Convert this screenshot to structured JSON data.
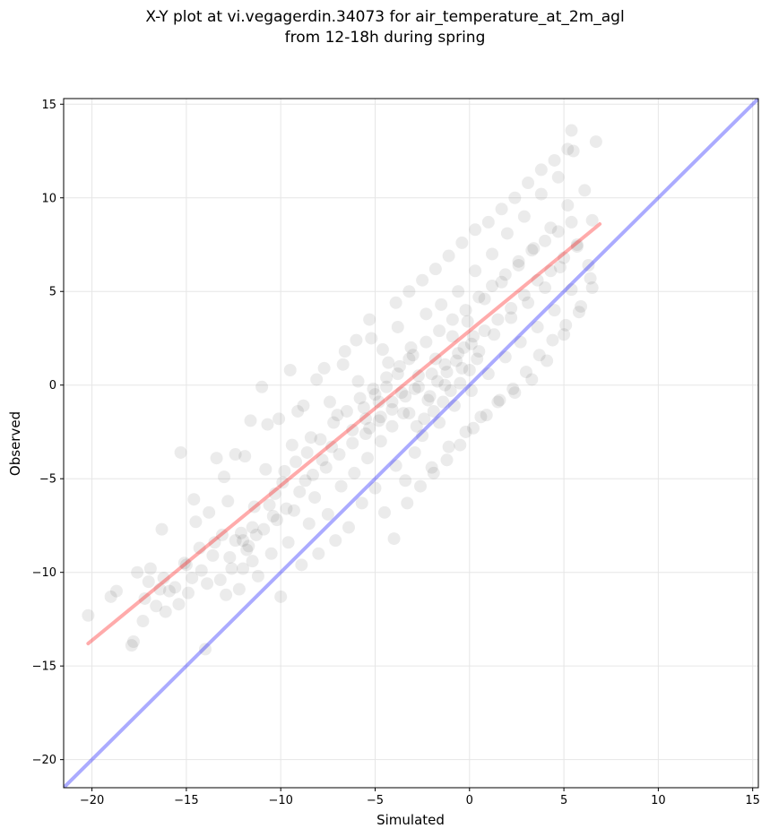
{
  "chart_data": {
    "type": "scatter",
    "title": "X-Y plot at vi.vegagerdin.34073 for air_temperature_at_2m_agl",
    "subtitle": "from 12-18h during spring",
    "xlabel": "Simulated",
    "ylabel": "Observed",
    "xlim": [
      -21.5,
      15.3
    ],
    "ylim": [
      -21.5,
      15.3
    ],
    "xticks": [
      -20,
      -15,
      -10,
      -5,
      0,
      5,
      10,
      15
    ],
    "yticks": [
      -20,
      -15,
      -10,
      -5,
      0,
      5,
      10,
      15
    ],
    "xtick_labels": [
      "−20",
      "−15",
      "−10",
      "−5",
      "0",
      "5",
      "10",
      "15"
    ],
    "ytick_labels": [
      "−20",
      "−15",
      "−10",
      "−5",
      "0",
      "5",
      "10",
      "15"
    ],
    "grid": true,
    "point_color": "#000000",
    "point_alpha": 0.08,
    "identity_line": {
      "x": [
        -21.5,
        15.3
      ],
      "y": [
        -21.5,
        15.3
      ],
      "color": "#0000ff"
    },
    "regression_line": {
      "x": [
        -20.2,
        6.9
      ],
      "y": [
        -13.8,
        8.6
      ],
      "color": "#ff0000"
    },
    "points": [
      [
        -20.2,
        -12.3
      ],
      [
        -19.0,
        -11.3
      ],
      [
        -18.7,
        -11.0
      ],
      [
        -17.9,
        -13.9
      ],
      [
        -17.8,
        -13.7
      ],
      [
        -17.6,
        -10.0
      ],
      [
        -17.3,
        -12.6
      ],
      [
        -17.2,
        -11.4
      ],
      [
        -17.0,
        -10.5
      ],
      [
        -16.9,
        -9.8
      ],
      [
        -16.6,
        -11.8
      ],
      [
        -16.4,
        -10.9
      ],
      [
        -16.3,
        -7.7
      ],
      [
        -16.1,
        -12.1
      ],
      [
        -15.9,
        -11.0
      ],
      [
        -15.6,
        -10.8
      ],
      [
        -15.4,
        -11.7
      ],
      [
        -15.1,
        -9.5
      ],
      [
        -14.9,
        -11.1
      ],
      [
        -14.7,
        -10.3
      ],
      [
        -14.5,
        -7.3
      ],
      [
        -14.2,
        -9.9
      ],
      [
        -14.0,
        -14.1
      ],
      [
        -13.9,
        -10.6
      ],
      [
        -13.8,
        -6.8
      ],
      [
        -13.6,
        -9.1
      ],
      [
        -13.4,
        -3.9
      ],
      [
        -13.2,
        -10.4
      ],
      [
        -13.1,
        -8.0
      ],
      [
        -12.9,
        -11.2
      ],
      [
        -12.8,
        -6.2
      ],
      [
        -12.6,
        -9.8
      ],
      [
        -12.4,
        -8.3
      ],
      [
        -12.2,
        -10.9
      ],
      [
        -12.1,
        -7.9
      ],
      [
        -11.9,
        -3.8
      ],
      [
        -11.7,
        -8.6
      ],
      [
        -11.5,
        -9.4
      ],
      [
        -11.4,
        -6.5
      ],
      [
        -11.2,
        -10.2
      ],
      [
        -11.0,
        -0.1
      ],
      [
        -10.9,
        -7.7
      ],
      [
        -10.7,
        -2.1
      ],
      [
        -10.5,
        -9.0
      ],
      [
        -10.3,
        -5.8
      ],
      [
        -10.2,
        -7.2
      ],
      [
        -10.0,
        -11.3
      ],
      [
        -9.8,
        -4.6
      ],
      [
        -9.6,
        -8.4
      ],
      [
        -9.4,
        -3.2
      ],
      [
        -9.3,
        -6.7
      ],
      [
        -9.1,
        -1.4
      ],
      [
        -8.9,
        -9.6
      ],
      [
        -8.7,
        -5.1
      ],
      [
        -8.5,
        -7.4
      ],
      [
        -8.4,
        -2.8
      ],
      [
        -8.2,
        -6.0
      ],
      [
        -8.0,
        -9.0
      ],
      [
        -7.8,
        -4.0
      ],
      [
        -7.7,
        0.9
      ],
      [
        -7.5,
        -6.9
      ],
      [
        -7.3,
        -3.3
      ],
      [
        -7.1,
        -8.3
      ],
      [
        -7.0,
        -1.6
      ],
      [
        -6.8,
        -5.4
      ],
      [
        -6.6,
        1.8
      ],
      [
        -6.4,
        -7.6
      ],
      [
        -6.2,
        -2.4
      ],
      [
        -6.1,
        -4.7
      ],
      [
        -5.9,
        0.2
      ],
      [
        -5.7,
        -6.3
      ],
      [
        -5.5,
        -1.8
      ],
      [
        -5.4,
        -3.9
      ],
      [
        -5.2,
        2.5
      ],
      [
        -5.0,
        -5.5
      ],
      [
        -4.8,
        -0.9
      ],
      [
        -4.7,
        -3.0
      ],
      [
        -4.5,
        -6.8
      ],
      [
        -4.3,
        1.2
      ],
      [
        -4.1,
        -2.2
      ],
      [
        -3.9,
        -4.3
      ],
      [
        -3.8,
        3.1
      ],
      [
        -3.6,
        -0.4
      ],
      [
        -3.4,
        -5.1
      ],
      [
        -3.2,
        -1.5
      ],
      [
        -3.1,
        2.0
      ],
      [
        -2.9,
        -3.6
      ],
      [
        -2.7,
        0.5
      ],
      [
        -2.5,
        -2.7
      ],
      [
        -2.3,
        3.8
      ],
      [
        -2.2,
        -0.8
      ],
      [
        -2.0,
        -4.4
      ],
      [
        -1.8,
        1.4
      ],
      [
        -1.6,
        -2.0
      ],
      [
        -1.5,
        4.3
      ],
      [
        -1.3,
        0.0
      ],
      [
        -1.1,
        -3.3
      ],
      [
        -0.9,
        2.6
      ],
      [
        -0.8,
        -1.1
      ],
      [
        -0.6,
        5.0
      ],
      [
        -0.4,
        0.9
      ],
      [
        -0.2,
        -2.5
      ],
      [
        -0.1,
        3.4
      ],
      [
        0.1,
        -0.3
      ],
      [
        0.3,
        6.1
      ],
      [
        0.5,
        1.8
      ],
      [
        0.6,
        -1.7
      ],
      [
        0.8,
        4.6
      ],
      [
        1.0,
        0.6
      ],
      [
        1.2,
        7.0
      ],
      [
        1.3,
        2.7
      ],
      [
        1.5,
        -0.9
      ],
      [
        1.7,
        5.5
      ],
      [
        1.9,
        1.5
      ],
      [
        2.0,
        8.1
      ],
      [
        2.2,
        3.6
      ],
      [
        2.4,
        -0.4
      ],
      [
        2.6,
        6.4
      ],
      [
        2.7,
        2.3
      ],
      [
        2.9,
        9.0
      ],
      [
        3.1,
        4.4
      ],
      [
        3.3,
        0.3
      ],
      [
        3.4,
        7.3
      ],
      [
        3.6,
        3.1
      ],
      [
        3.8,
        10.2
      ],
      [
        4.0,
        5.2
      ],
      [
        4.1,
        1.3
      ],
      [
        4.3,
        8.4
      ],
      [
        4.5,
        4.0
      ],
      [
        4.7,
        11.1
      ],
      [
        4.8,
        6.3
      ],
      [
        5.0,
        2.7
      ],
      [
        5.2,
        9.6
      ],
      [
        5.4,
        5.1
      ],
      [
        5.5,
        12.5
      ],
      [
        5.7,
        7.4
      ],
      [
        5.9,
        4.2
      ],
      [
        6.1,
        10.4
      ],
      [
        6.3,
        6.4
      ],
      [
        6.5,
        8.8
      ],
      [
        6.7,
        13.0
      ],
      [
        -15.3,
        -3.6
      ],
      [
        -14.6,
        -6.1
      ],
      [
        -13.0,
        -4.9
      ],
      [
        -12.4,
        -3.7
      ],
      [
        -11.6,
        -1.9
      ],
      [
        -10.8,
        -4.5
      ],
      [
        -10.1,
        -1.8
      ],
      [
        -9.5,
        0.8
      ],
      [
        -8.8,
        -1.1
      ],
      [
        -8.1,
        0.3
      ],
      [
        -7.4,
        -0.9
      ],
      [
        -6.7,
        1.1
      ],
      [
        -6.0,
        2.4
      ],
      [
        -5.3,
        3.5
      ],
      [
        -4.6,
        1.9
      ],
      [
        -3.9,
        4.4
      ],
      [
        -3.2,
        5.0
      ],
      [
        -2.5,
        5.6
      ],
      [
        -1.8,
        6.2
      ],
      [
        -1.1,
        6.9
      ],
      [
        -0.4,
        7.6
      ],
      [
        0.3,
        8.3
      ],
      [
        1.0,
        8.7
      ],
      [
        1.7,
        9.4
      ],
      [
        2.4,
        10.0
      ],
      [
        3.1,
        10.8
      ],
      [
        3.8,
        11.5
      ],
      [
        4.5,
        12.0
      ],
      [
        5.2,
        12.6
      ],
      [
        5.4,
        13.6
      ],
      [
        -12.0,
        -8.3
      ],
      [
        -11.8,
        -8.8
      ],
      [
        -11.5,
        -7.6
      ],
      [
        -10.6,
        -6.4
      ],
      [
        -9.9,
        -5.2
      ],
      [
        -9.2,
        -4.1
      ],
      [
        -8.6,
        -3.6
      ],
      [
        -7.9,
        -2.9
      ],
      [
        -7.2,
        -2.0
      ],
      [
        -6.5,
        -1.4
      ],
      [
        -5.8,
        -0.7
      ],
      [
        -5.1,
        -0.2
      ],
      [
        -4.4,
        0.4
      ],
      [
        -3.7,
        1.0
      ],
      [
        -3.0,
        1.6
      ],
      [
        -2.3,
        2.3
      ],
      [
        -1.6,
        2.9
      ],
      [
        -0.9,
        3.5
      ],
      [
        -0.2,
        4.0
      ],
      [
        0.5,
        4.7
      ],
      [
        1.2,
        5.3
      ],
      [
        1.9,
        5.9
      ],
      [
        2.6,
        6.6
      ],
      [
        3.3,
        7.2
      ],
      [
        4.0,
        7.7
      ],
      [
        4.7,
        8.2
      ],
      [
        5.4,
        8.7
      ],
      [
        -16.2,
        -10.3
      ],
      [
        -15.0,
        -9.6
      ],
      [
        -14.3,
        -8.7
      ],
      [
        -13.5,
        -8.4
      ],
      [
        -12.7,
        -9.2
      ],
      [
        -12.0,
        -9.8
      ],
      [
        -11.3,
        -8.0
      ],
      [
        -10.4,
        -7.0
      ],
      [
        -9.7,
        -6.6
      ],
      [
        -9.0,
        -5.7
      ],
      [
        -8.3,
        -4.8
      ],
      [
        -7.6,
        -4.4
      ],
      [
        -6.9,
        -3.7
      ],
      [
        -6.2,
        -3.1
      ],
      [
        -5.5,
        -2.6
      ],
      [
        -4.8,
        -1.9
      ],
      [
        -4.1,
        -1.3
      ],
      [
        -3.4,
        -0.6
      ],
      [
        -2.7,
        -0.1
      ],
      [
        -2.0,
        0.6
      ],
      [
        -1.3,
        1.1
      ],
      [
        -0.6,
        1.7
      ],
      [
        0.1,
        2.2
      ],
      [
        0.8,
        2.9
      ],
      [
        1.5,
        3.5
      ],
      [
        2.2,
        4.1
      ],
      [
        2.9,
        4.8
      ],
      [
        3.6,
        5.6
      ],
      [
        4.3,
        6.1
      ],
      [
        5.0,
        6.8
      ],
      [
        5.7,
        7.5
      ],
      [
        6.4,
        5.7
      ],
      [
        -4.0,
        -8.2
      ],
      [
        -3.3,
        -6.3
      ],
      [
        -2.6,
        -5.4
      ],
      [
        -1.9,
        -4.7
      ],
      [
        -1.2,
        -4.0
      ],
      [
        -0.5,
        -3.2
      ],
      [
        0.2,
        -2.3
      ],
      [
        0.9,
        -1.6
      ],
      [
        1.6,
        -0.8
      ],
      [
        2.3,
        -0.2
      ],
      [
        3.0,
        0.7
      ],
      [
        3.7,
        1.6
      ],
      [
        4.4,
        2.4
      ],
      [
        5.1,
        3.2
      ],
      [
        5.8,
        3.9
      ],
      [
        6.5,
        5.2
      ],
      [
        -2.8,
        -2.2
      ],
      [
        -2.4,
        -1.8
      ],
      [
        -2.1,
        -0.6
      ],
      [
        -1.9,
        -1.4
      ],
      [
        -1.7,
        0.2
      ],
      [
        -1.4,
        -0.9
      ],
      [
        -1.2,
        0.7
      ],
      [
        -1.0,
        -0.3
      ],
      [
        -0.7,
        1.3
      ],
      [
        -0.5,
        0.1
      ],
      [
        -0.3,
        2.0
      ],
      [
        0.0,
        0.8
      ],
      [
        0.2,
        2.6
      ],
      [
        0.4,
        1.4
      ],
      [
        -5.6,
        -1.2
      ],
      [
        -5.3,
        -2.3
      ],
      [
        -5.0,
        -0.5
      ],
      [
        -4.7,
        -1.7
      ],
      [
        -4.4,
        -0.1
      ],
      [
        -4.1,
        -0.9
      ],
      [
        -3.8,
        0.6
      ],
      [
        -3.5,
        -1.5
      ],
      [
        -3.2,
        1.4
      ],
      [
        -2.9,
        -0.2
      ]
    ]
  }
}
